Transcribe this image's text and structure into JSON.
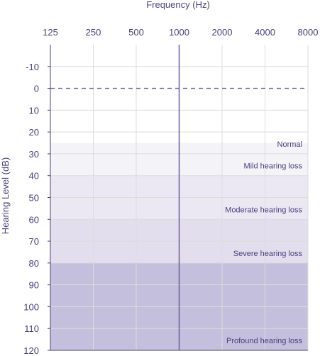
{
  "chart_data": {
    "type": "audiogram",
    "xlabel": "Frequency (Hz)",
    "ylabel": "Hearing Level (dB)",
    "x_ticks": [
      "125",
      "250",
      "500",
      "1000",
      "2000",
      "4000",
      "8000"
    ],
    "x_scale": "log2",
    "y_ticks": [
      -10,
      0,
      10,
      20,
      30,
      40,
      50,
      60,
      70,
      80,
      90,
      100,
      110,
      120
    ],
    "ylim": [
      -20,
      120
    ],
    "y_inverted": true,
    "grid": true,
    "reference_line": {
      "y": 0,
      "style": "dashed"
    },
    "marker_line": {
      "x": 1000,
      "style": "solid"
    },
    "bands": [
      {
        "label": "Normal",
        "from": 25,
        "to": 30,
        "color": "#f4f3f8"
      },
      {
        "label": "Mild hearing loss",
        "from": 30,
        "to": 40,
        "color": "#f4f3f8"
      },
      {
        "label": "Moderate hearing loss",
        "from": 40,
        "to": 60,
        "color": "#ebe8f3"
      },
      {
        "label": "Severe hearing loss",
        "from": 60,
        "to": 80,
        "color": "#e2deee"
      },
      {
        "label": "Profound hearing loss",
        "from": 80,
        "to": 120,
        "color": "#c4bfdd"
      }
    ],
    "colors": {
      "text": "#4a3f7a",
      "line": "#6a5a9e",
      "grid": "#dcdcdc"
    }
  }
}
